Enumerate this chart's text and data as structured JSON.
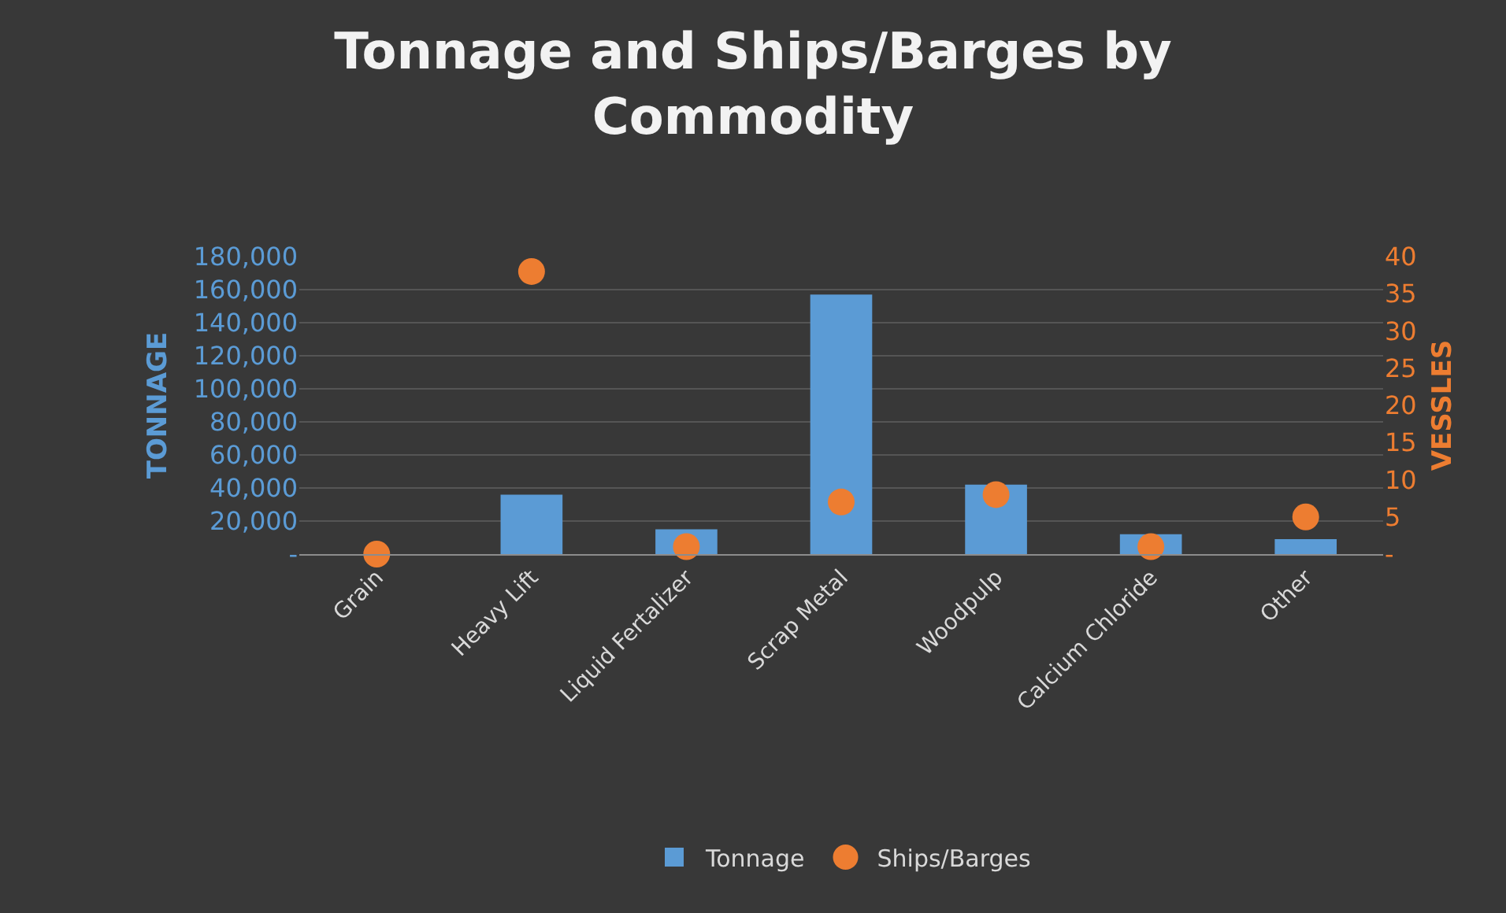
{
  "chart_data": {
    "type": "bar",
    "title": "Tonnage and Ships/Barges by Commodity",
    "ylabel": "TONNAGE",
    "y2label": "VESSLES",
    "categories": [
      "Grain",
      "Heavy Lift",
      "Liquid Fertalizer",
      "Scrap Metal",
      "Woodpulp",
      "Calcium Chloride",
      "Other"
    ],
    "series": [
      {
        "name": "Tonnage",
        "color": "#5b9bd5",
        "values": [
          0,
          36000,
          15000,
          157000,
          42000,
          12000,
          9000
        ]
      },
      {
        "name": "Ships/Barges",
        "type": "scatter",
        "axis": "y2",
        "color": "#ed7d31",
        "values": [
          0,
          38,
          1,
          7,
          8,
          1,
          5
        ]
      }
    ],
    "ylim": [
      0,
      180000
    ],
    "yticks": [
      {
        "value": 0,
        "label": "-"
      },
      {
        "value": 20000,
        "label": "20,000"
      },
      {
        "value": 40000,
        "label": "40,000"
      },
      {
        "value": 60000,
        "label": "60,000"
      },
      {
        "value": 80000,
        "label": "80,000"
      },
      {
        "value": 100000,
        "label": "100,000"
      },
      {
        "value": 120000,
        "label": "120,000"
      },
      {
        "value": 140000,
        "label": "140,000"
      },
      {
        "value": 160000,
        "label": "160,000"
      },
      {
        "value": 180000,
        "label": "180,000"
      }
    ],
    "y2lim": [
      0,
      40
    ],
    "y2ticks": [
      {
        "value": 0,
        "label": "-"
      },
      5,
      10,
      15,
      20,
      25,
      30,
      35,
      40
    ],
    "grid": "y",
    "legend": "bottom",
    "marker": "circle"
  }
}
